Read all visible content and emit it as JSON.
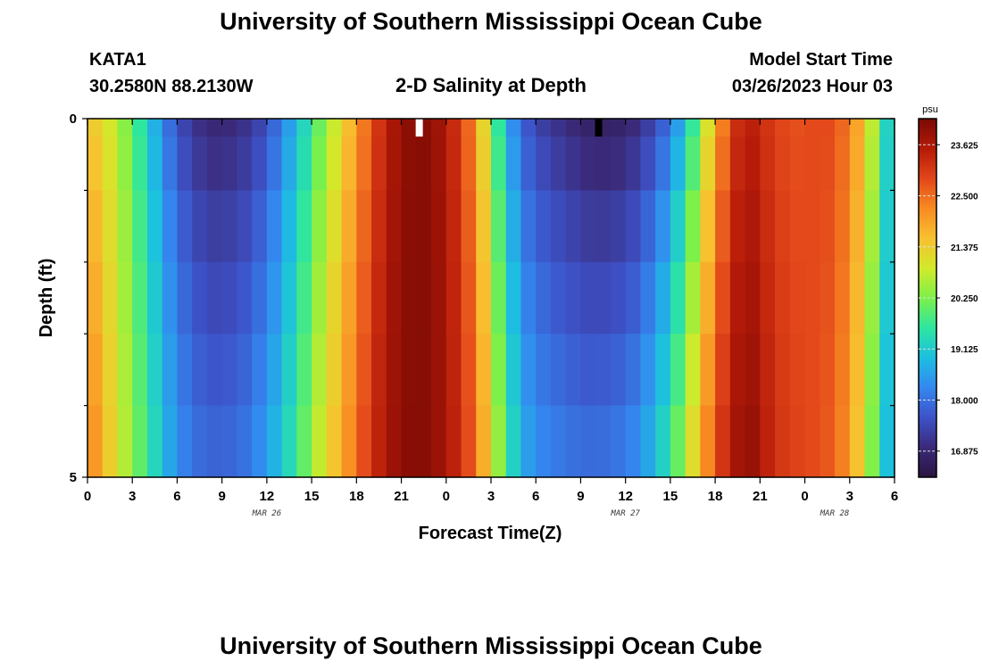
{
  "page": {
    "title_top": "University of Southern Mississippi Ocean Cube",
    "title_bottom": "University of Southern Mississippi Ocean Cube",
    "station_id": "KATA1",
    "station_coords": "30.2580N  88.2130W",
    "model_label": "Model Start Time",
    "model_time": "03/26/2023 Hour 03"
  },
  "chart_data": {
    "type": "heatmap",
    "title": "2-D Salinity at Depth",
    "xlabel": "Forecast Time(Z)",
    "ylabel": "Depth (ft)",
    "colorbar_label": "psu",
    "colorbar_ticks": [
      "23.625",
      "22.500",
      "21.375",
      "20.250",
      "19.125",
      "18.000",
      "16.875"
    ],
    "colorbar_tick_values": [
      23.625,
      22.5,
      21.375,
      20.25,
      19.125,
      18.0,
      16.875
    ],
    "colorbar_range": [
      16.3,
      24.2
    ],
    "colormap": [
      "#2a1540",
      "#3b2a7a",
      "#3d52c8",
      "#3488f0",
      "#1cbfe0",
      "#2ee6a0",
      "#7cf04a",
      "#d2ea2a",
      "#f8c030",
      "#f88a22",
      "#e2461a",
      "#b51a08",
      "#7a0a04"
    ],
    "x_tick_labels": [
      "0",
      "3",
      "6",
      "9",
      "12",
      "15",
      "18",
      "21",
      "0",
      "3",
      "6",
      "9",
      "12",
      "15",
      "18",
      "21",
      "0",
      "3",
      "6"
    ],
    "x_range_hours": [
      0,
      54
    ],
    "day_labels": [
      {
        "label": "MAR 26",
        "hour": 12
      },
      {
        "label": "MAR 27",
        "hour": 36
      },
      {
        "label": "MAR 28",
        "hour": 50
      }
    ],
    "y_tick_labels": [
      "0",
      "5"
    ],
    "y_range": [
      0,
      5
    ],
    "depth_layers": [
      0.0,
      0.5,
      1.5,
      2.5,
      3.5,
      4.5
    ],
    "surface_salinity_keyframes": [
      [
        0,
        21.6
      ],
      [
        1,
        21.2
      ],
      [
        2,
        20.7
      ],
      [
        3,
        20.0
      ],
      [
        4,
        19.2
      ],
      [
        5,
        18.3
      ],
      [
        6,
        17.6
      ],
      [
        7,
        17.2
      ],
      [
        8,
        16.9
      ],
      [
        9,
        16.9
      ],
      [
        10,
        17.0
      ],
      [
        11,
        17.2
      ],
      [
        12,
        17.6
      ],
      [
        13,
        18.2
      ],
      [
        14,
        18.9
      ],
      [
        15,
        19.7
      ],
      [
        16,
        20.5
      ],
      [
        17,
        21.2
      ],
      [
        18,
        22.0
      ],
      [
        19,
        22.8
      ],
      [
        20,
        23.5
      ],
      [
        21,
        23.9
      ],
      [
        22,
        24.1
      ],
      [
        23,
        24.0
      ],
      [
        24,
        23.6
      ],
      [
        25,
        23.0
      ],
      [
        26,
        22.1
      ],
      [
        27,
        20.4
      ],
      [
        28,
        18.8
      ],
      [
        29,
        17.9
      ],
      [
        30,
        17.4
      ],
      [
        32,
        17.0
      ],
      [
        34,
        16.7
      ],
      [
        36,
        16.8
      ],
      [
        37,
        17.1
      ],
      [
        38,
        17.5
      ],
      [
        39,
        18.1
      ],
      [
        40,
        19.0
      ],
      [
        41,
        20.3
      ],
      [
        42,
        21.8
      ],
      [
        43,
        22.9
      ],
      [
        44,
        23.6
      ],
      [
        45,
        23.3
      ],
      [
        46,
        23.0
      ],
      [
        47,
        22.8
      ],
      [
        48,
        22.8
      ],
      [
        49,
        22.9
      ],
      [
        50,
        22.8
      ],
      [
        51,
        22.3
      ],
      [
        52,
        21.5
      ],
      [
        53,
        20.0
      ],
      [
        54,
        18.5
      ]
    ],
    "bottom_salinity_keyframes": [
      [
        0,
        22.4
      ],
      [
        1,
        21.8
      ],
      [
        2,
        21.0
      ],
      [
        3,
        20.4
      ],
      [
        4,
        19.7
      ],
      [
        5,
        19.0
      ],
      [
        6,
        18.4
      ],
      [
        7,
        18.1
      ],
      [
        8,
        17.9
      ],
      [
        9,
        17.9
      ],
      [
        10,
        18.0
      ],
      [
        11,
        18.2
      ],
      [
        12,
        18.6
      ],
      [
        13,
        19.1
      ],
      [
        14,
        19.7
      ],
      [
        15,
        20.5
      ],
      [
        16,
        21.2
      ],
      [
        17,
        21.9
      ],
      [
        18,
        22.5
      ],
      [
        19,
        23.2
      ],
      [
        20,
        23.7
      ],
      [
        21,
        24.0
      ],
      [
        22,
        24.1
      ],
      [
        23,
        24.0
      ],
      [
        24,
        23.7
      ],
      [
        25,
        23.2
      ],
      [
        26,
        22.5
      ],
      [
        27,
        21.2
      ],
      [
        28,
        19.8
      ],
      [
        29,
        18.8
      ],
      [
        30,
        18.4
      ],
      [
        32,
        18.1
      ],
      [
        34,
        18.0
      ],
      [
        36,
        18.2
      ],
      [
        37,
        18.5
      ],
      [
        38,
        19.0
      ],
      [
        39,
        19.7
      ],
      [
        40,
        20.7
      ],
      [
        41,
        21.8
      ],
      [
        42,
        22.9
      ],
      [
        43,
        23.5
      ],
      [
        44,
        24.1
      ],
      [
        45,
        23.7
      ],
      [
        46,
        23.2
      ],
      [
        47,
        23.0
      ],
      [
        48,
        22.9
      ],
      [
        49,
        22.8
      ],
      [
        50,
        22.6
      ],
      [
        51,
        22.0
      ],
      [
        52,
        21.0
      ],
      [
        53,
        19.5
      ],
      [
        54,
        18.4
      ]
    ],
    "surface_gaps": [
      {
        "hour": 22.2,
        "color": "#ffffff"
      },
      {
        "hour": 34.2,
        "color": "#000000"
      }
    ]
  }
}
